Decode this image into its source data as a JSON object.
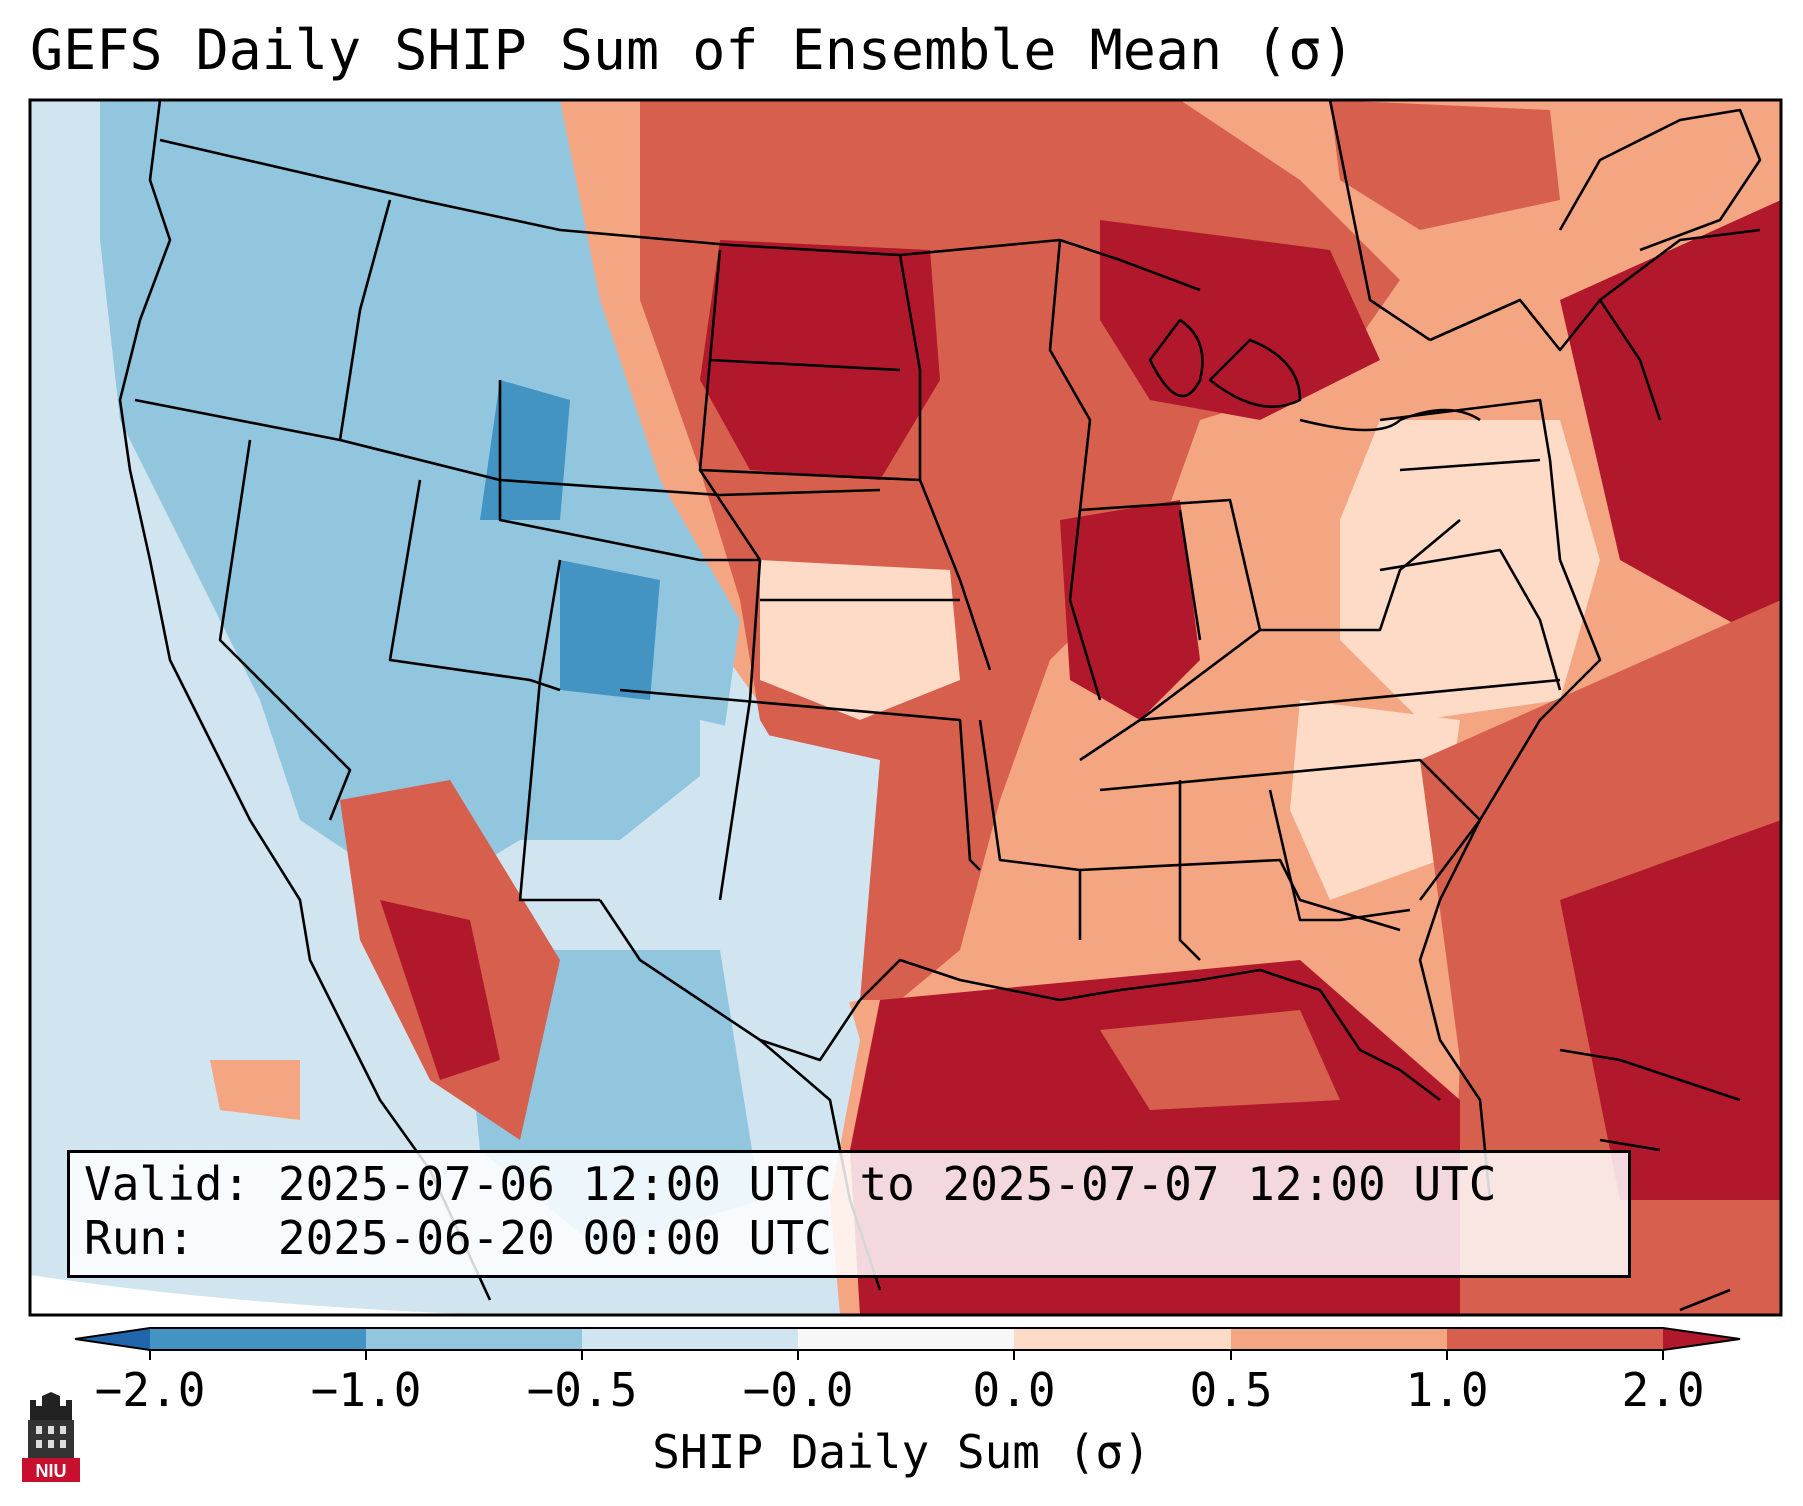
{
  "title": "GEFS Daily SHIP Sum of Ensemble Mean (σ)",
  "info": {
    "valid_label": "Valid:",
    "valid_value": "2025-07-06 12:00 UTC to 2025-07-07 12:00 UTC",
    "run_label": "Run:",
    "run_value": "2025-06-20 00:00 UTC"
  },
  "colorbar": {
    "label": "SHIP Daily Sum (σ)",
    "ticks": [
      "−2.0",
      "−1.0",
      "−0.5",
      "−0.0",
      "0.0",
      "0.5",
      "1.0",
      "2.0"
    ],
    "colors": [
      "#2166ac",
      "#4393c3",
      "#92c5de",
      "#d1e5f0",
      "#f7f7f7",
      "#fddbc7",
      "#f4a582",
      "#d6604d",
      "#b2182b"
    ]
  },
  "logo": {
    "text": "NIU"
  },
  "chart_data": {
    "type": "heatmap",
    "region": "Contiguous United States",
    "variable": "SHIP Daily Sum (σ)",
    "color_levels": [
      -2.0,
      -1.0,
      -0.5,
      -0.0,
      0.0,
      0.5,
      1.0,
      2.0
    ],
    "colormap": "RdBu_r"
  }
}
